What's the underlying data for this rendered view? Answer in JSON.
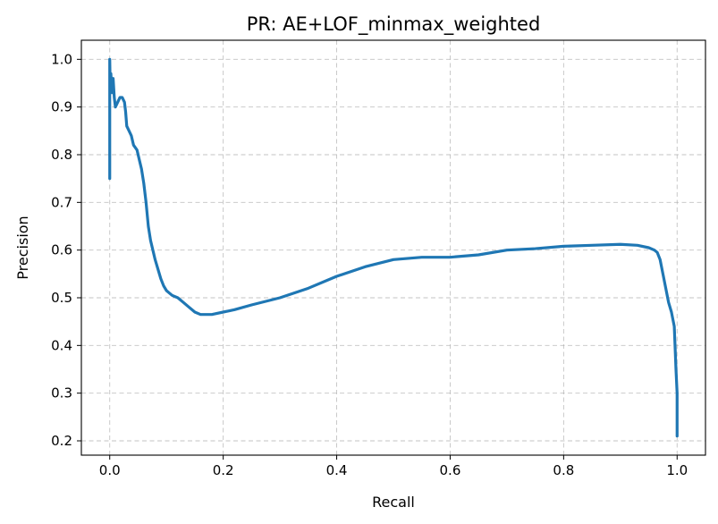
{
  "chart_data": {
    "type": "line",
    "title": "PR: AE+LOF_minmax_weighted",
    "xlabel": "Recall",
    "ylabel": "Precision",
    "xlim": [
      -0.05,
      1.05
    ],
    "ylim": [
      0.17,
      1.04
    ],
    "xticks": [
      0.0,
      0.2,
      0.4,
      0.6,
      0.8,
      1.0
    ],
    "xtick_labels": [
      "0.0",
      "0.2",
      "0.4",
      "0.6",
      "0.8",
      "1.0"
    ],
    "yticks": [
      0.2,
      0.3,
      0.4,
      0.5,
      0.6,
      0.7,
      0.8,
      0.9,
      1.0
    ],
    "ytick_labels": [
      "0.2",
      "0.3",
      "0.4",
      "0.5",
      "0.6",
      "0.7",
      "0.8",
      "0.9",
      "1.0"
    ],
    "grid": true,
    "series": [
      {
        "color": "#1f77b4",
        "points": [
          [
            0.0,
            0.75
          ],
          [
            0.0,
            1.0
          ],
          [
            0.001,
            0.93
          ],
          [
            0.002,
            0.97
          ],
          [
            0.004,
            0.93
          ],
          [
            0.006,
            0.96
          ],
          [
            0.008,
            0.92
          ],
          [
            0.01,
            0.9
          ],
          [
            0.014,
            0.91
          ],
          [
            0.018,
            0.92
          ],
          [
            0.022,
            0.92
          ],
          [
            0.026,
            0.91
          ],
          [
            0.028,
            0.89
          ],
          [
            0.03,
            0.86
          ],
          [
            0.034,
            0.85
          ],
          [
            0.038,
            0.84
          ],
          [
            0.042,
            0.82
          ],
          [
            0.048,
            0.81
          ],
          [
            0.052,
            0.79
          ],
          [
            0.056,
            0.77
          ],
          [
            0.06,
            0.74
          ],
          [
            0.064,
            0.7
          ],
          [
            0.068,
            0.65
          ],
          [
            0.072,
            0.62
          ],
          [
            0.076,
            0.6
          ],
          [
            0.08,
            0.58
          ],
          [
            0.085,
            0.56
          ],
          [
            0.09,
            0.54
          ],
          [
            0.095,
            0.525
          ],
          [
            0.1,
            0.515
          ],
          [
            0.105,
            0.51
          ],
          [
            0.11,
            0.505
          ],
          [
            0.12,
            0.5
          ],
          [
            0.13,
            0.49
          ],
          [
            0.14,
            0.48
          ],
          [
            0.15,
            0.47
          ],
          [
            0.16,
            0.465
          ],
          [
            0.18,
            0.465
          ],
          [
            0.2,
            0.47
          ],
          [
            0.22,
            0.475
          ],
          [
            0.25,
            0.485
          ],
          [
            0.3,
            0.5
          ],
          [
            0.35,
            0.52
          ],
          [
            0.4,
            0.545
          ],
          [
            0.45,
            0.565
          ],
          [
            0.5,
            0.58
          ],
          [
            0.55,
            0.585
          ],
          [
            0.6,
            0.585
          ],
          [
            0.65,
            0.59
          ],
          [
            0.7,
            0.6
          ],
          [
            0.75,
            0.603
          ],
          [
            0.8,
            0.608
          ],
          [
            0.85,
            0.61
          ],
          [
            0.9,
            0.612
          ],
          [
            0.93,
            0.61
          ],
          [
            0.95,
            0.605
          ],
          [
            0.96,
            0.6
          ],
          [
            0.965,
            0.595
          ],
          [
            0.97,
            0.58
          ],
          [
            0.975,
            0.55
          ],
          [
            0.98,
            0.52
          ],
          [
            0.985,
            0.49
          ],
          [
            0.99,
            0.47
          ],
          [
            0.995,
            0.44
          ],
          [
            0.998,
            0.35
          ],
          [
            1.0,
            0.3
          ],
          [
            1.0,
            0.21
          ]
        ]
      }
    ]
  }
}
